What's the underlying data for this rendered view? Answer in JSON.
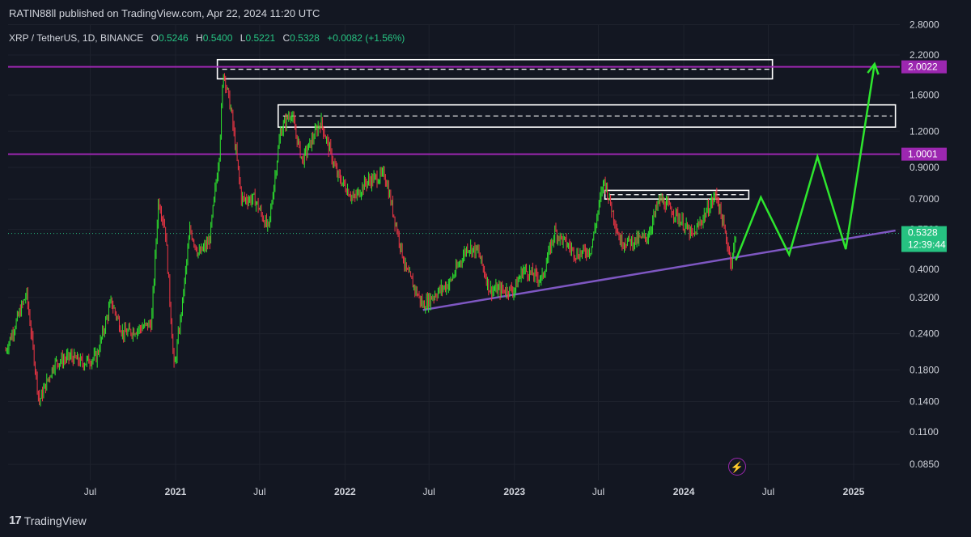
{
  "header": {
    "publisher": "RATIN88ll published on TradingView.com, Apr 22, 2024 11:20 UTC",
    "symbol": "XRP / TetherUS, 1D, BINANCE",
    "open_label": "O",
    "open": "0.5246",
    "high_label": "H",
    "high": "0.5400",
    "low_label": "L",
    "low": "0.5221",
    "close_label": "C",
    "close": "0.5328",
    "change": "+0.0082 (+1.56%)"
  },
  "footer": {
    "brand": "TradingView",
    "logo": "17"
  },
  "colors": {
    "background": "#131722",
    "up": "#26a69a",
    "up_candle": "#2ee62e",
    "down": "#f23645",
    "level_line": "#9c27b0",
    "trendline": "#7e57c2",
    "projection": "#2ee62e",
    "price_label": "#26c281"
  },
  "chart_data": {
    "type": "line",
    "title": "XRP / TetherUS, 1D, BINANCE",
    "log_scale": true,
    "y_ticks": [
      "2.8000",
      "2.2000",
      "1.6000",
      "1.2000",
      "0.9000",
      "0.7000",
      "0.5500",
      "0.4000",
      "0.3200",
      "0.2400",
      "0.1800",
      "0.1400",
      "0.1100",
      "0.0850"
    ],
    "y_tick_values": [
      2.8,
      2.2,
      1.6,
      1.2,
      0.9,
      0.7,
      0.55,
      0.4,
      0.32,
      0.24,
      0.18,
      0.14,
      0.11,
      0.085
    ],
    "ylim": [
      0.075,
      3.0
    ],
    "x_ticks": [
      "Jul",
      "2021",
      "Jul",
      "2022",
      "Jul",
      "2023",
      "Jul",
      "2024",
      "Jul",
      "2025"
    ],
    "x_tick_dates": [
      "2020-07-01",
      "2021-01-01",
      "2021-07-01",
      "2022-01-01",
      "2022-07-01",
      "2023-01-01",
      "2023-07-01",
      "2024-01-01",
      "2024-07-01",
      "2025-01-01"
    ],
    "price_series": {
      "name": "XRPUSDT",
      "points": [
        [
          "2020-01-01",
          0.21
        ],
        [
          "2020-02-15",
          0.33
        ],
        [
          "2020-03-13",
          0.14
        ],
        [
          "2020-04-15",
          0.19
        ],
        [
          "2020-05-20",
          0.2
        ],
        [
          "2020-06-15",
          0.19
        ],
        [
          "2020-07-15",
          0.2
        ],
        [
          "2020-08-15",
          0.31
        ],
        [
          "2020-09-10",
          0.24
        ],
        [
          "2020-10-15",
          0.25
        ],
        [
          "2020-11-10",
          0.26
        ],
        [
          "2020-11-25",
          0.7
        ],
        [
          "2020-12-10",
          0.55
        ],
        [
          "2020-12-29",
          0.18
        ],
        [
          "2021-01-15",
          0.3
        ],
        [
          "2021-02-01",
          0.55
        ],
        [
          "2021-02-20",
          0.45
        ],
        [
          "2021-03-15",
          0.5
        ],
        [
          "2021-04-05",
          1.0
        ],
        [
          "2021-04-14",
          1.95
        ],
        [
          "2021-05-01",
          1.4
        ],
        [
          "2021-05-23",
          0.7
        ],
        [
          "2021-06-20",
          0.7
        ],
        [
          "2021-07-20",
          0.55
        ],
        [
          "2021-08-15",
          1.2
        ],
        [
          "2021-09-06",
          1.4
        ],
        [
          "2021-10-01",
          0.95
        ],
        [
          "2021-11-10",
          1.3
        ],
        [
          "2021-12-15",
          0.85
        ],
        [
          "2022-01-20",
          0.7
        ],
        [
          "2022-02-15",
          0.8
        ],
        [
          "2022-03-28",
          0.85
        ],
        [
          "2022-05-12",
          0.4
        ],
        [
          "2022-06-18",
          0.3
        ],
        [
          "2022-07-15",
          0.33
        ],
        [
          "2022-08-15",
          0.36
        ],
        [
          "2022-09-22",
          0.48
        ],
        [
          "2022-10-15",
          0.46
        ],
        [
          "2022-11-09",
          0.34
        ],
        [
          "2022-12-31",
          0.34
        ],
        [
          "2023-01-20",
          0.4
        ],
        [
          "2023-03-01",
          0.37
        ],
        [
          "2023-03-29",
          0.54
        ],
        [
          "2023-05-15",
          0.45
        ],
        [
          "2023-06-15",
          0.47
        ],
        [
          "2023-07-13",
          0.82
        ],
        [
          "2023-08-17",
          0.5
        ],
        [
          "2023-09-15",
          0.5
        ],
        [
          "2023-10-15",
          0.52
        ],
        [
          "2023-11-10",
          0.7
        ],
        [
          "2023-12-15",
          0.62
        ],
        [
          "2024-01-20",
          0.52
        ],
        [
          "2024-03-11",
          0.73
        ],
        [
          "2024-04-13",
          0.42
        ],
        [
          "2024-04-22",
          0.5328
        ]
      ]
    },
    "resistance_levels": [
      {
        "label": "2.0022",
        "value": 2.0022
      },
      {
        "label": "1.0001",
        "value": 1.0001
      }
    ],
    "last_price": {
      "label": "0.5328",
      "value": 0.5328,
      "countdown": "12:39:44"
    },
    "boxes": [
      {
        "from": "2021-04-01",
        "to": "2024-07-10",
        "low": 1.82,
        "high": 2.12
      },
      {
        "from": "2021-08-10",
        "to": "2025-04-01",
        "low": 1.24,
        "high": 1.48
      },
      {
        "from": "2023-07-15",
        "to": "2024-05-20",
        "low": 0.7,
        "high": 0.75
      }
    ],
    "trendline": [
      [
        "2022-06-18",
        0.29
      ],
      [
        "2025-04-01",
        0.545
      ]
    ],
    "projection": [
      [
        "2024-04-22",
        0.43
      ],
      [
        "2024-06-15",
        0.71
      ],
      [
        "2024-08-15",
        0.45
      ],
      [
        "2024-10-15",
        0.98
      ],
      [
        "2024-12-15",
        0.47
      ],
      [
        "2025-02-15",
        2.05
      ]
    ]
  }
}
